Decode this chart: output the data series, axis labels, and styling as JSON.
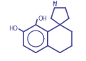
{
  "bg_color": "#ffffff",
  "line_color": "#4a4a9a",
  "line_width": 1.2,
  "fig_width": 1.21,
  "fig_height": 0.86,
  "dpi": 100,
  "ring_r": 0.72,
  "pyr_r": 0.48,
  "xlim": [
    -2.1,
    1.6
  ],
  "ylim": [
    -1.15,
    1.9
  ],
  "font_size": 6.0
}
